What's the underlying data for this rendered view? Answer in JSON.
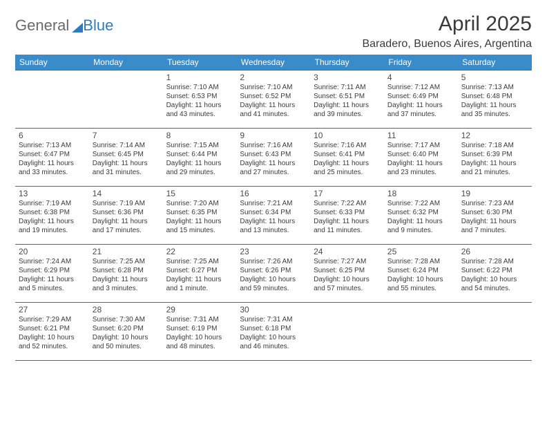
{
  "logo": {
    "text1": "General",
    "text2": "Blue"
  },
  "title": "April 2025",
  "location": "Baradero, Buenos Aires, Argentina",
  "colors": {
    "header_bg": "#3a8bc9",
    "header_text": "#ffffff",
    "border": "#2f6fa3",
    "logo_blue": "#2f7bbf",
    "logo_gray": "#6a6a6a",
    "body_text": "#3a3a3a",
    "page_bg": "#ffffff"
  },
  "day_headers": [
    "Sunday",
    "Monday",
    "Tuesday",
    "Wednesday",
    "Thursday",
    "Friday",
    "Saturday"
  ],
  "weeks": [
    [
      null,
      null,
      {
        "n": "1",
        "sr": "Sunrise: 7:10 AM",
        "ss": "Sunset: 6:53 PM",
        "dl": "Daylight: 11 hours and 43 minutes."
      },
      {
        "n": "2",
        "sr": "Sunrise: 7:10 AM",
        "ss": "Sunset: 6:52 PM",
        "dl": "Daylight: 11 hours and 41 minutes."
      },
      {
        "n": "3",
        "sr": "Sunrise: 7:11 AM",
        "ss": "Sunset: 6:51 PM",
        "dl": "Daylight: 11 hours and 39 minutes."
      },
      {
        "n": "4",
        "sr": "Sunrise: 7:12 AM",
        "ss": "Sunset: 6:49 PM",
        "dl": "Daylight: 11 hours and 37 minutes."
      },
      {
        "n": "5",
        "sr": "Sunrise: 7:13 AM",
        "ss": "Sunset: 6:48 PM",
        "dl": "Daylight: 11 hours and 35 minutes."
      }
    ],
    [
      {
        "n": "6",
        "sr": "Sunrise: 7:13 AM",
        "ss": "Sunset: 6:47 PM",
        "dl": "Daylight: 11 hours and 33 minutes."
      },
      {
        "n": "7",
        "sr": "Sunrise: 7:14 AM",
        "ss": "Sunset: 6:45 PM",
        "dl": "Daylight: 11 hours and 31 minutes."
      },
      {
        "n": "8",
        "sr": "Sunrise: 7:15 AM",
        "ss": "Sunset: 6:44 PM",
        "dl": "Daylight: 11 hours and 29 minutes."
      },
      {
        "n": "9",
        "sr": "Sunrise: 7:16 AM",
        "ss": "Sunset: 6:43 PM",
        "dl": "Daylight: 11 hours and 27 minutes."
      },
      {
        "n": "10",
        "sr": "Sunrise: 7:16 AM",
        "ss": "Sunset: 6:41 PM",
        "dl": "Daylight: 11 hours and 25 minutes."
      },
      {
        "n": "11",
        "sr": "Sunrise: 7:17 AM",
        "ss": "Sunset: 6:40 PM",
        "dl": "Daylight: 11 hours and 23 minutes."
      },
      {
        "n": "12",
        "sr": "Sunrise: 7:18 AM",
        "ss": "Sunset: 6:39 PM",
        "dl": "Daylight: 11 hours and 21 minutes."
      }
    ],
    [
      {
        "n": "13",
        "sr": "Sunrise: 7:19 AM",
        "ss": "Sunset: 6:38 PM",
        "dl": "Daylight: 11 hours and 19 minutes."
      },
      {
        "n": "14",
        "sr": "Sunrise: 7:19 AM",
        "ss": "Sunset: 6:36 PM",
        "dl": "Daylight: 11 hours and 17 minutes."
      },
      {
        "n": "15",
        "sr": "Sunrise: 7:20 AM",
        "ss": "Sunset: 6:35 PM",
        "dl": "Daylight: 11 hours and 15 minutes."
      },
      {
        "n": "16",
        "sr": "Sunrise: 7:21 AM",
        "ss": "Sunset: 6:34 PM",
        "dl": "Daylight: 11 hours and 13 minutes."
      },
      {
        "n": "17",
        "sr": "Sunrise: 7:22 AM",
        "ss": "Sunset: 6:33 PM",
        "dl": "Daylight: 11 hours and 11 minutes."
      },
      {
        "n": "18",
        "sr": "Sunrise: 7:22 AM",
        "ss": "Sunset: 6:32 PM",
        "dl": "Daylight: 11 hours and 9 minutes."
      },
      {
        "n": "19",
        "sr": "Sunrise: 7:23 AM",
        "ss": "Sunset: 6:30 PM",
        "dl": "Daylight: 11 hours and 7 minutes."
      }
    ],
    [
      {
        "n": "20",
        "sr": "Sunrise: 7:24 AM",
        "ss": "Sunset: 6:29 PM",
        "dl": "Daylight: 11 hours and 5 minutes."
      },
      {
        "n": "21",
        "sr": "Sunrise: 7:25 AM",
        "ss": "Sunset: 6:28 PM",
        "dl": "Daylight: 11 hours and 3 minutes."
      },
      {
        "n": "22",
        "sr": "Sunrise: 7:25 AM",
        "ss": "Sunset: 6:27 PM",
        "dl": "Daylight: 11 hours and 1 minute."
      },
      {
        "n": "23",
        "sr": "Sunrise: 7:26 AM",
        "ss": "Sunset: 6:26 PM",
        "dl": "Daylight: 10 hours and 59 minutes."
      },
      {
        "n": "24",
        "sr": "Sunrise: 7:27 AM",
        "ss": "Sunset: 6:25 PM",
        "dl": "Daylight: 10 hours and 57 minutes."
      },
      {
        "n": "25",
        "sr": "Sunrise: 7:28 AM",
        "ss": "Sunset: 6:24 PM",
        "dl": "Daylight: 10 hours and 55 minutes."
      },
      {
        "n": "26",
        "sr": "Sunrise: 7:28 AM",
        "ss": "Sunset: 6:22 PM",
        "dl": "Daylight: 10 hours and 54 minutes."
      }
    ],
    [
      {
        "n": "27",
        "sr": "Sunrise: 7:29 AM",
        "ss": "Sunset: 6:21 PM",
        "dl": "Daylight: 10 hours and 52 minutes."
      },
      {
        "n": "28",
        "sr": "Sunrise: 7:30 AM",
        "ss": "Sunset: 6:20 PM",
        "dl": "Daylight: 10 hours and 50 minutes."
      },
      {
        "n": "29",
        "sr": "Sunrise: 7:31 AM",
        "ss": "Sunset: 6:19 PM",
        "dl": "Daylight: 10 hours and 48 minutes."
      },
      {
        "n": "30",
        "sr": "Sunrise: 7:31 AM",
        "ss": "Sunset: 6:18 PM",
        "dl": "Daylight: 10 hours and 46 minutes."
      },
      null,
      null,
      null
    ]
  ]
}
